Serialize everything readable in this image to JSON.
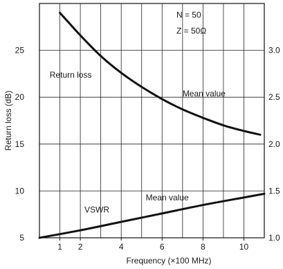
{
  "chart_data": {
    "type": "line",
    "xlabel": "Frequency (×100 MHz)",
    "ylabel": "Return loss (dB)",
    "y2label": "",
    "xlim": [
      0,
      11
    ],
    "ylim": [
      5,
      30
    ],
    "y2lim": [
      1.0,
      3.5
    ],
    "x_ticks": [
      1,
      2,
      4,
      6,
      8,
      10
    ],
    "y_ticks": [
      5,
      10,
      15,
      20,
      25
    ],
    "y2_ticks": [
      "1.0",
      "1.5",
      "2.0",
      "2.5",
      "3.0"
    ],
    "grid_x": [
      1,
      2,
      3,
      4,
      5,
      6,
      7,
      8,
      9,
      10
    ],
    "grid_y": [
      5,
      10,
      15,
      20,
      25
    ],
    "grid": true,
    "series": [
      {
        "name": "Return loss",
        "axis": "left",
        "x": [
          1,
          1.5,
          2,
          3,
          4,
          5,
          6,
          7,
          8,
          9,
          10,
          10.8
        ],
        "y": [
          29,
          27.8,
          26.6,
          24.4,
          22.6,
          21.1,
          19.8,
          18.7,
          17.8,
          17.0,
          16.4,
          16.0
        ]
      },
      {
        "name": "VSWR",
        "axis": "right",
        "x": [
          0,
          2,
          4,
          6,
          8,
          10,
          11
        ],
        "y": [
          1.0,
          1.08,
          1.17,
          1.26,
          1.35,
          1.43,
          1.47
        ]
      }
    ],
    "annotations": [
      {
        "text": "N = 50",
        "x": 6.7,
        "y": 28.5,
        "axis": "left"
      },
      {
        "text": "Z = 50Ω",
        "x": 6.7,
        "y": 26.8,
        "axis": "left"
      },
      {
        "text": "Return loss",
        "x": 0.5,
        "y": 22.1,
        "axis": "left"
      },
      {
        "text": "Mean value",
        "x": 7.0,
        "y": 20.1,
        "axis": "left"
      },
      {
        "text": "Mean value",
        "x": 5.2,
        "y": 9.0,
        "axis": "left"
      },
      {
        "text": "VSWR",
        "x": 2.2,
        "y": 7.7,
        "axis": "left"
      }
    ]
  }
}
